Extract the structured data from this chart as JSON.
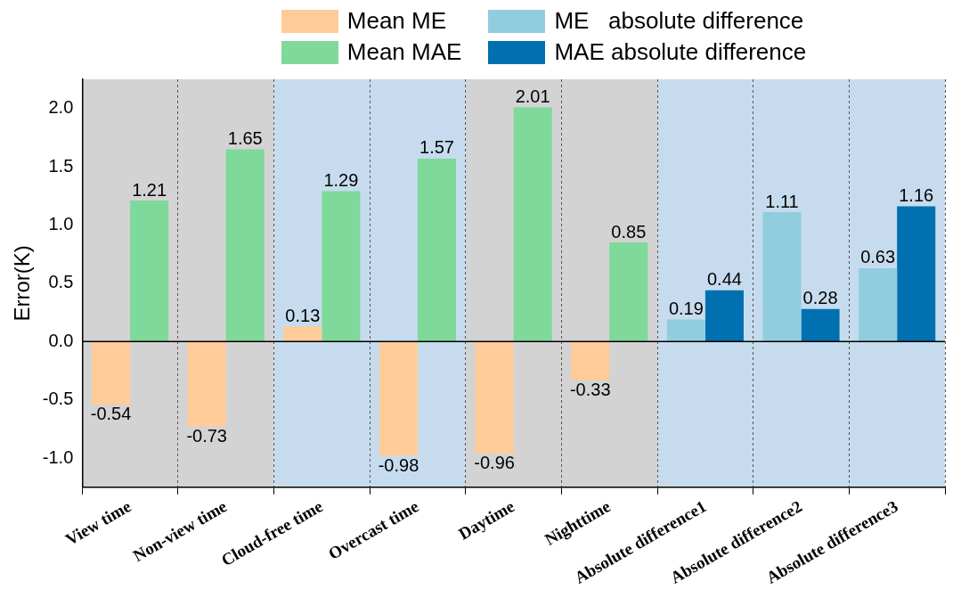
{
  "chart_data": {
    "type": "bar",
    "ylabel": "Error(K)",
    "categories": [
      "View time",
      "Non-view time",
      "Cloud-free time",
      "Overcast time",
      "Daytime",
      "Nighttime",
      "Absolute difference1",
      "Absolute difference2",
      "Absolute difference3"
    ],
    "series": [
      {
        "name": "Mean ME",
        "color": "#ffcc99",
        "values": [
          -0.54,
          -0.73,
          0.13,
          -0.98,
          -0.96,
          -0.33,
          null,
          null,
          null
        ]
      },
      {
        "name": "Mean MAE",
        "color": "#7fd99a",
        "values": [
          1.21,
          1.65,
          1.29,
          1.57,
          2.01,
          0.85,
          null,
          null,
          null
        ]
      },
      {
        "name": "ME   absolute difference",
        "color": "#92cddf",
        "values": [
          null,
          null,
          null,
          null,
          null,
          null,
          0.19,
          1.11,
          0.63
        ]
      },
      {
        "name": "MAE absolute difference",
        "color": "#0070b0",
        "values": [
          null,
          null,
          null,
          null,
          null,
          null,
          0.44,
          0.28,
          1.16
        ]
      }
    ],
    "ylim": [
      -1.25,
      2.25
    ],
    "yticks": [
      {
        "value": -1,
        "label": "-1.0"
      },
      {
        "value": -0.5,
        "label": "-0.5"
      },
      {
        "value": 0,
        "label": "0.0"
      },
      {
        "value": 0.5,
        "label": "0.5"
      },
      {
        "value": 1,
        "label": "1.0"
      },
      {
        "value": 1.5,
        "label": "1.5"
      },
      {
        "value": 2,
        "label": "2.0"
      }
    ],
    "bands": [
      {
        "axis": "x",
        "from": "View time",
        "to": "Non-view time",
        "color": "#d3d3d3"
      },
      {
        "axis": "x",
        "from": "Cloud-free time",
        "to": "Overcast time",
        "color": "#c6dcee"
      },
      {
        "axis": "x",
        "from": "Daytime",
        "to": "Nighttime",
        "color": "#d3d3d3"
      },
      {
        "axis": "x",
        "from": "Absolute difference1",
        "to": "Absolute difference3",
        "color": "#c6dcee"
      }
    ],
    "ref_lines": [
      {
        "axis": "y",
        "value": 0,
        "color": "#000000"
      }
    ],
    "grid": "x",
    "line_style": "dashed",
    "data_labels": true,
    "legend": "top"
  }
}
